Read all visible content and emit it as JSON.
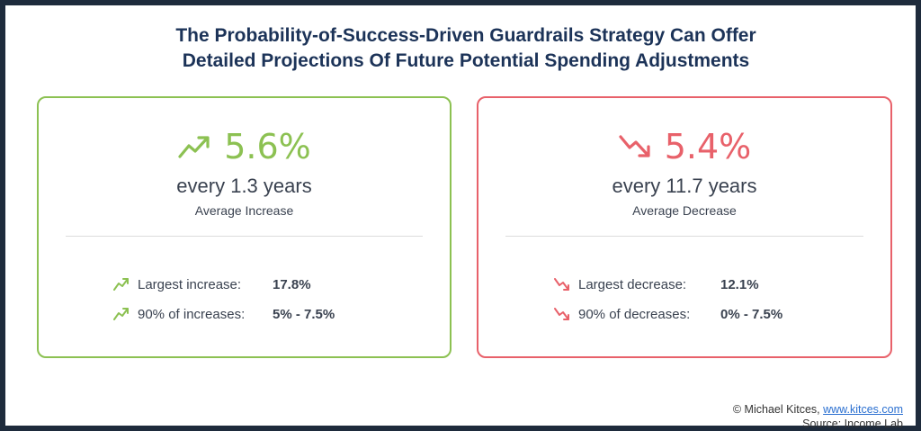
{
  "title": {
    "line1": "The Probability-of-Success-Driven Guardrails Strategy Can Offer",
    "line2": "Detailed Projections Of Future Potential Spending Adjustments"
  },
  "increase_card": {
    "icon": "trend-up-icon",
    "percent": "5.6%",
    "frequency": "every 1.3 years",
    "caption": "Average Increase",
    "stats": [
      {
        "label": "Largest increase:",
        "value": "17.8%"
      },
      {
        "label": "90% of increases:",
        "value": "5% - 7.5%"
      }
    ],
    "color": "#8cc152"
  },
  "decrease_card": {
    "icon": "trend-down-icon",
    "percent": "5.4%",
    "frequency": "every 11.7 years",
    "caption": "Average Decrease",
    "stats": [
      {
        "label": "Largest decrease:",
        "value": "12.1%"
      },
      {
        "label": "90% of decreases:",
        "value": "0% - 7.5%"
      }
    ],
    "color": "#e8616a"
  },
  "credit": {
    "copyright": "© Michael Kitces, ",
    "link": "www.kitces.com",
    "source": "Source: Income Lab"
  }
}
